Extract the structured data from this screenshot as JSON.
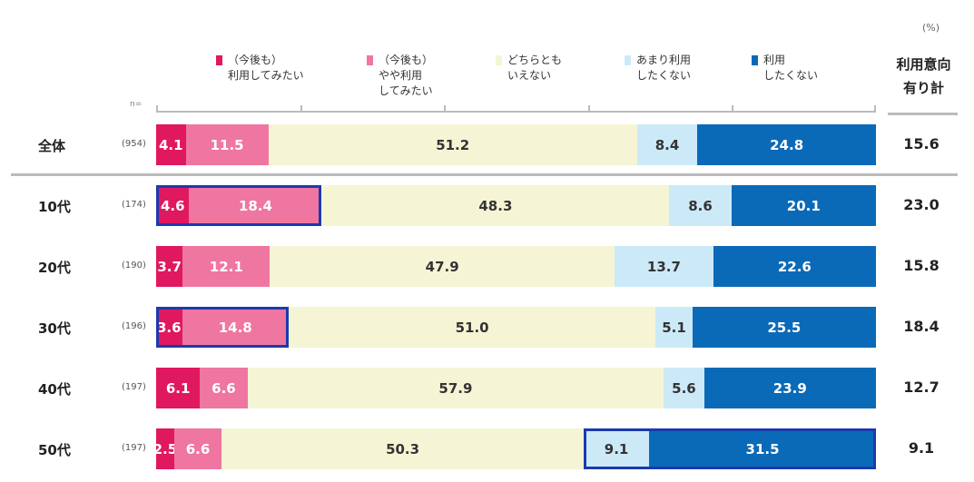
{
  "chart_data": {
    "type": "bar",
    "orientation": "horizontal",
    "stacked": true,
    "unit_label": "(%)",
    "n_label": "n=",
    "total_header": [
      "利用意向",
      "有り計"
    ],
    "colors": [
      "#e0185f",
      "#ef76a0",
      "#f5f5d5",
      "#cce9f8",
      "#0a6ab8"
    ],
    "label_colors": [
      "#fff",
      "#fff",
      "#333",
      "#333",
      "#fff"
    ],
    "series": [
      {
        "name": [
          "（今後も）",
          "利用してみたい"
        ]
      },
      {
        "name": [
          "（今後も）",
          "やや利用",
          "してみたい"
        ]
      },
      {
        "name": [
          "どちらとも",
          "いえない"
        ]
      },
      {
        "name": [
          "あまり利用",
          "したくない"
        ]
      },
      {
        "name": [
          "利用",
          "したくない"
        ]
      }
    ],
    "categories": [
      {
        "label": "全体",
        "n": "(954)",
        "values": [
          4.1,
          11.5,
          51.2,
          8.4,
          24.8
        ],
        "total": "15.6",
        "highlight": null
      },
      {
        "label": "10代",
        "n": "(174)",
        "values": [
          4.6,
          18.4,
          48.3,
          8.6,
          20.1
        ],
        "total": "23.0",
        "highlight": [
          0,
          1
        ]
      },
      {
        "label": "20代",
        "n": "(190)",
        "values": [
          3.7,
          12.1,
          47.9,
          13.7,
          22.6
        ],
        "total": "15.8",
        "highlight": null
      },
      {
        "label": "30代",
        "n": "(196)",
        "values": [
          3.6,
          14.8,
          51.0,
          5.1,
          25.5
        ],
        "total": "18.4",
        "highlight": [
          0,
          1
        ]
      },
      {
        "label": "40代",
        "n": "(197)",
        "values": [
          6.1,
          6.6,
          57.9,
          5.6,
          23.9
        ],
        "total": "12.7",
        "highlight": null
      },
      {
        "label": "50代",
        "n": "(197)",
        "values": [
          2.5,
          6.6,
          50.3,
          9.1,
          31.5
        ],
        "total": "9.1",
        "highlight": [
          3,
          4
        ]
      }
    ],
    "xlim": [
      0,
      100
    ]
  }
}
